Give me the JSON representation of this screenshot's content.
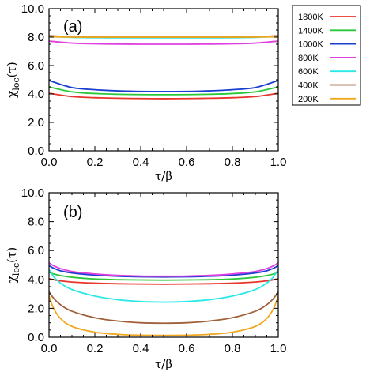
{
  "chart_data": [
    {
      "type": "line",
      "panel_label": "(a)",
      "xlabel": "τ/β",
      "ylabel": "χloc(τ)",
      "ylabel_base": "χ",
      "ylabel_sub": "loc",
      "ylabel_rest": "(τ)",
      "xlim": [
        0.0,
        1.0
      ],
      "ylim": [
        0.0,
        10.0
      ],
      "xticks": [
        0.0,
        0.2,
        0.4,
        0.6,
        0.8,
        1.0
      ],
      "xtick_labels": [
        "0.0",
        "0.2",
        "0.4",
        "0.6",
        "0.8",
        "1.0"
      ],
      "yticks": [
        0.0,
        2.0,
        4.0,
        6.0,
        8.0,
        10.0
      ],
      "ytick_labels": [
        "0.0",
        "2.0",
        "4.0",
        "6.0",
        "8.0",
        "10.0"
      ],
      "x": [
        0.0,
        0.1,
        0.2,
        0.3,
        0.4,
        0.5,
        0.6,
        0.7,
        0.8,
        0.9,
        1.0
      ],
      "series": [
        {
          "name": "1800K",
          "color": "#e8342a",
          "values": [
            4.05,
            3.82,
            3.74,
            3.7,
            3.68,
            3.67,
            3.68,
            3.7,
            3.74,
            3.82,
            4.05
          ]
        },
        {
          "name": "1400K",
          "color": "#2cc83c",
          "values": [
            4.5,
            4.15,
            4.03,
            3.98,
            3.96,
            3.95,
            3.96,
            3.98,
            4.03,
            4.15,
            4.5
          ]
        },
        {
          "name": "1000K",
          "color": "#1a3fd0",
          "values": [
            4.95,
            4.45,
            4.3,
            4.22,
            4.18,
            4.17,
            4.18,
            4.22,
            4.3,
            4.45,
            4.95
          ]
        },
        {
          "name": "800K",
          "color": "#e040e0",
          "values": [
            7.72,
            7.58,
            7.53,
            7.51,
            7.5,
            7.5,
            7.5,
            7.51,
            7.53,
            7.58,
            7.72
          ]
        },
        {
          "name": "600K",
          "color": "#2ae8e8",
          "values": [
            8.05,
            7.98,
            7.96,
            7.95,
            7.95,
            7.95,
            7.95,
            7.95,
            7.96,
            7.98,
            8.05
          ]
        },
        {
          "name": "400K",
          "color": "#a0603a",
          "values": [
            8.1,
            8.02,
            8.0,
            8.0,
            8.0,
            8.0,
            8.0,
            8.0,
            8.0,
            8.02,
            8.1
          ]
        },
        {
          "name": "200K",
          "color": "#f0a820",
          "values": [
            8.02,
            8.0,
            8.0,
            8.0,
            8.0,
            8.0,
            8.0,
            8.0,
            8.0,
            8.0,
            8.02
          ]
        }
      ]
    },
    {
      "type": "line",
      "panel_label": "(b)",
      "xlabel": "τ/β",
      "ylabel": "χloc(τ)",
      "ylabel_base": "χ",
      "ylabel_sub": "loc",
      "ylabel_rest": "(τ)",
      "xlim": [
        0.0,
        1.0
      ],
      "ylim": [
        0.0,
        10.0
      ],
      "xticks": [
        0.0,
        0.2,
        0.4,
        0.6,
        0.8,
        1.0
      ],
      "xtick_labels": [
        "0.0",
        "0.2",
        "0.4",
        "0.6",
        "0.8",
        "1.0"
      ],
      "yticks": [
        0.0,
        2.0,
        4.0,
        6.0,
        8.0,
        10.0
      ],
      "ytick_labels": [
        "0.0",
        "2.0",
        "4.0",
        "6.0",
        "8.0",
        "10.0"
      ],
      "x": [
        0.0,
        0.02,
        0.05,
        0.1,
        0.2,
        0.3,
        0.4,
        0.5,
        0.6,
        0.7,
        0.8,
        0.9,
        0.95,
        0.98,
        1.0
      ],
      "series": [
        {
          "name": "1800K",
          "color": "#e8342a",
          "values": [
            4.05,
            3.98,
            3.9,
            3.82,
            3.74,
            3.7,
            3.68,
            3.67,
            3.68,
            3.7,
            3.74,
            3.82,
            3.9,
            3.98,
            4.05
          ]
        },
        {
          "name": "1400K",
          "color": "#2cc83c",
          "values": [
            4.5,
            4.38,
            4.27,
            4.15,
            4.03,
            3.98,
            3.96,
            3.95,
            3.96,
            3.98,
            4.03,
            4.15,
            4.27,
            4.38,
            4.5
          ]
        },
        {
          "name": "1000K",
          "color": "#1a3fd0",
          "values": [
            4.95,
            4.78,
            4.6,
            4.45,
            4.3,
            4.22,
            4.18,
            4.17,
            4.18,
            4.22,
            4.3,
            4.45,
            4.6,
            4.78,
            4.95
          ]
        },
        {
          "name": "800K",
          "color": "#e040e0",
          "values": [
            5.15,
            4.95,
            4.75,
            4.55,
            4.38,
            4.28,
            4.23,
            4.22,
            4.23,
            4.28,
            4.38,
            4.55,
            4.75,
            4.95,
            5.15
          ]
        },
        {
          "name": "600K",
          "color": "#2ae8e8",
          "values": [
            4.7,
            4.2,
            3.75,
            3.3,
            2.85,
            2.6,
            2.47,
            2.43,
            2.47,
            2.6,
            2.85,
            3.3,
            3.75,
            4.2,
            4.7
          ]
        },
        {
          "name": "400K",
          "color": "#a0603a",
          "values": [
            3.15,
            2.7,
            2.25,
            1.8,
            1.35,
            1.12,
            1.0,
            0.97,
            1.0,
            1.12,
            1.35,
            1.8,
            2.25,
            2.7,
            3.15
          ]
        },
        {
          "name": "200K",
          "color": "#f0a820",
          "values": [
            2.85,
            2.0,
            1.3,
            0.75,
            0.35,
            0.2,
            0.14,
            0.13,
            0.14,
            0.2,
            0.35,
            0.75,
            1.3,
            2.0,
            2.85
          ]
        }
      ]
    }
  ],
  "legend": {
    "placement": "top-right, outside plots",
    "entries": [
      {
        "label": "1800K",
        "color": "#e8342a"
      },
      {
        "label": "1400K",
        "color": "#2cc83c"
      },
      {
        "label": "1000K",
        "color": "#1a3fd0"
      },
      {
        "label": "800K",
        "color": "#e040e0"
      },
      {
        "label": "600K",
        "color": "#2ae8e8"
      },
      {
        "label": "400K",
        "color": "#a0603a"
      },
      {
        "label": "200K",
        "color": "#f0a820"
      }
    ]
  }
}
